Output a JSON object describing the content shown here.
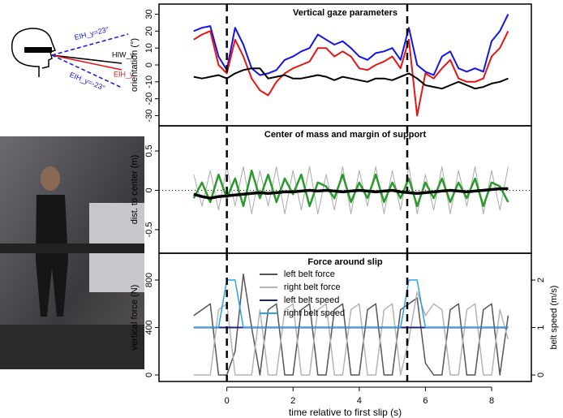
{
  "diagram": {
    "labels": [
      "EIH_y=23°",
      "HIW_y",
      "EIH_y",
      "EIH_y=-23°"
    ]
  },
  "chart_data": [
    {
      "type": "line",
      "title": "Vertical gaze parameters",
      "y_label": "orientation (°)",
      "xlim": [
        -2.05,
        9.2
      ],
      "ylim": [
        -36,
        36
      ],
      "yticks": [
        -30,
        -20,
        -10,
        0,
        10,
        20,
        30
      ],
      "vlines": [
        0,
        5.45
      ],
      "x": [
        -1,
        -0.75,
        -0.5,
        -0.25,
        0,
        0.25,
        0.5,
        0.75,
        1,
        1.25,
        1.5,
        1.75,
        2,
        2.25,
        2.5,
        2.75,
        3,
        3.25,
        3.5,
        3.75,
        4,
        4.25,
        4.5,
        4.75,
        5,
        5.25,
        5.5,
        5.75,
        6,
        6.25,
        6.5,
        6.75,
        7,
        7.25,
        7.5,
        7.75,
        8,
        8.25,
        8.5
      ],
      "series": [
        {
          "color": "#1414e6",
          "linewidth": 2,
          "values": [
            20,
            22,
            23,
            5,
            -3,
            22,
            12,
            -2,
            -6,
            -5,
            -3,
            3,
            5,
            8,
            10,
            18,
            15,
            12,
            14,
            10,
            5,
            3,
            7,
            8,
            10,
            3,
            22,
            0,
            -4,
            -6,
            5,
            8,
            -2,
            -4,
            -2,
            -4,
            14,
            20,
            30
          ]
        },
        {
          "color": "#e81414",
          "linewidth": 2,
          "values": [
            15,
            18,
            20,
            0,
            -5,
            15,
            5,
            -8,
            -15,
            -18,
            -10,
            -5,
            -2,
            0,
            2,
            10,
            10,
            5,
            8,
            5,
            -2,
            -3,
            0,
            2,
            5,
            -2,
            15,
            -30,
            -5,
            -8,
            -2,
            3,
            -8,
            -10,
            -10,
            -8,
            5,
            10,
            20
          ]
        },
        {
          "color": "#000000",
          "linewidth": 2,
          "values": [
            -7,
            -8,
            -7,
            -6,
            -8,
            -5,
            -3,
            -2,
            -2,
            -8,
            -7,
            -6,
            -8,
            -8,
            -7,
            -6,
            -7,
            -9,
            -7,
            -8,
            -9,
            -10,
            -8,
            -8,
            -9,
            -7,
            -5,
            -8,
            -12,
            -13,
            -14,
            -12,
            -10,
            -12,
            -14,
            -13,
            -11,
            -10,
            -8
          ]
        }
      ]
    },
    {
      "type": "line",
      "title": "Center of mass and margin of support",
      "y_label": "dist. to center (m)",
      "xlim": [
        -2.05,
        9.2
      ],
      "ylim": [
        -0.8,
        0.82
      ],
      "yticks": [
        -0.5,
        0,
        0.5
      ],
      "vlines": [
        0,
        5.45
      ],
      "hlines": [
        0
      ],
      "x": [
        -1,
        -0.75,
        -0.5,
        -0.25,
        0,
        0.25,
        0.5,
        0.75,
        1,
        1.25,
        1.5,
        1.75,
        2,
        2.25,
        2.5,
        2.75,
        3,
        3.25,
        3.5,
        3.75,
        4,
        4.25,
        4.5,
        4.75,
        5,
        5.25,
        5.5,
        5.75,
        6,
        6.25,
        6.5,
        6.75,
        7,
        7.25,
        7.5,
        7.75,
        8,
        8.25,
        8.5
      ],
      "series": [
        {
          "color": "#aaaaaa",
          "linewidth": 1,
          "values": [
            0.2,
            -0.2,
            0.25,
            -0.25,
            0.3,
            -0.2,
            0.3,
            -0.3,
            0.25,
            -0.2,
            0.3,
            -0.3,
            0.25,
            -0.25,
            0.3,
            -0.3,
            0.2,
            -0.25,
            0.3,
            -0.3,
            0.25,
            -0.2,
            0.3,
            -0.3,
            0.25,
            -0.25,
            0.3,
            -0.3,
            0.2,
            -0.25,
            0.3,
            -0.3,
            0.25,
            -0.2,
            0.3,
            -0.3,
            0.25,
            -0.25,
            0.3
          ]
        },
        {
          "color": "#2a9a2a",
          "linewidth": 2.5,
          "values": [
            -0.1,
            0.1,
            -0.15,
            0.2,
            -0.1,
            0.15,
            -0.2,
            0.25,
            -0.1,
            0.2,
            -0.15,
            0.15,
            -0.05,
            0.2,
            -0.2,
            0.1,
            0.05,
            -0.1,
            0.2,
            -0.15,
            0.1,
            -0.1,
            0.2,
            -0.15,
            0.1,
            -0.1,
            0.15,
            -0.2,
            0.1,
            -0.1,
            0.15,
            -0.15,
            0.1,
            -0.1,
            0.15,
            -0.2,
            0.1,
            0.05,
            -0.15
          ]
        },
        {
          "color": "#000000",
          "linewidth": 3.5,
          "values": [
            -0.05,
            -0.08,
            -0.1,
            -0.08,
            -0.07,
            -0.06,
            -0.05,
            -0.04,
            -0.03,
            -0.04,
            -0.03,
            -0.02,
            -0.02,
            -0.01,
            0,
            -0.01,
            0,
            -0.01,
            -0.02,
            -0.01,
            0,
            -0.01,
            -0.02,
            -0.01,
            0,
            -0.02,
            -0.03,
            -0.04,
            -0.03,
            -0.02,
            -0.01,
            0,
            -0.01,
            -0.02,
            -0.01,
            0,
            0.01,
            0.02,
            0.02
          ]
        }
      ]
    },
    {
      "type": "line",
      "title": "Force around slip",
      "y_label": "vertical force (N)",
      "y2_label": "belt speed (m/s)",
      "x_label": "time relative to first slip (s)",
      "legend": "upper center",
      "xlim": [
        -2.05,
        9.2
      ],
      "xticks": [
        0,
        2,
        4,
        6,
        8
      ],
      "ylim": [
        -55,
        1026
      ],
      "yticks": [
        0,
        400,
        800
      ],
      "y2lim": [
        -0.137,
        2.565
      ],
      "y2ticks": [
        0,
        1,
        2
      ],
      "vlines": [
        0,
        5.45
      ],
      "x": [
        -1,
        -0.75,
        -0.5,
        -0.25,
        0,
        0.25,
        0.5,
        0.75,
        1,
        1.25,
        1.5,
        1.75,
        2,
        2.25,
        2.5,
        2.75,
        3,
        3.25,
        3.5,
        3.75,
        4,
        4.25,
        4.5,
        4.75,
        5,
        5.25,
        5.5,
        5.75,
        6,
        6.25,
        6.5,
        6.75,
        7,
        7.25,
        7.5,
        7.75,
        8,
        8.25,
        8.5
      ],
      "series": [
        {
          "name": "left belt force",
          "color": "#555555",
          "linewidth": 1.5,
          "values": [
            500,
            550,
            600,
            0,
            0,
            200,
            850,
            400,
            0,
            550,
            600,
            0,
            0,
            550,
            600,
            0,
            0,
            550,
            600,
            0,
            0,
            550,
            600,
            0,
            0,
            550,
            600,
            650,
            100,
            0,
            0,
            550,
            600,
            0,
            0,
            550,
            600,
            0,
            500
          ]
        },
        {
          "name": "right belt force",
          "color": "#b4b4b4",
          "linewidth": 1.5,
          "values": [
            0,
            0,
            0,
            550,
            600,
            0,
            0,
            0,
            550,
            0,
            0,
            550,
            600,
            0,
            0,
            550,
            600,
            0,
            0,
            550,
            600,
            0,
            0,
            550,
            600,
            0,
            300,
            700,
            500,
            600,
            550,
            0,
            0,
            550,
            600,
            0,
            0,
            550,
            300
          ]
        },
        {
          "name": "left belt speed",
          "color": "#1a237e",
          "linewidth": 2,
          "axis": "y2",
          "values": [
            1,
            1,
            1,
            1,
            1,
            1,
            1,
            1,
            1,
            1,
            1,
            1,
            1,
            1,
            1,
            1,
            1,
            1,
            1,
            1,
            1,
            1,
            1,
            1,
            1,
            1,
            1,
            1,
            1,
            1,
            1,
            1,
            1,
            1,
            1,
            1,
            1,
            1,
            1
          ]
        },
        {
          "name": "right belt speed",
          "color": "#29a3e8",
          "linewidth": 1.5,
          "axis": "y2",
          "values": [
            1,
            1,
            1,
            1,
            2,
            2,
            1,
            1,
            1,
            1,
            1,
            1,
            1,
            1,
            1,
            1,
            1,
            1,
            1,
            1,
            1,
            1,
            1,
            1,
            1,
            1,
            2,
            2,
            1,
            1,
            1,
            1,
            1,
            1,
            1,
            1,
            1,
            1,
            1
          ]
        }
      ]
    }
  ]
}
